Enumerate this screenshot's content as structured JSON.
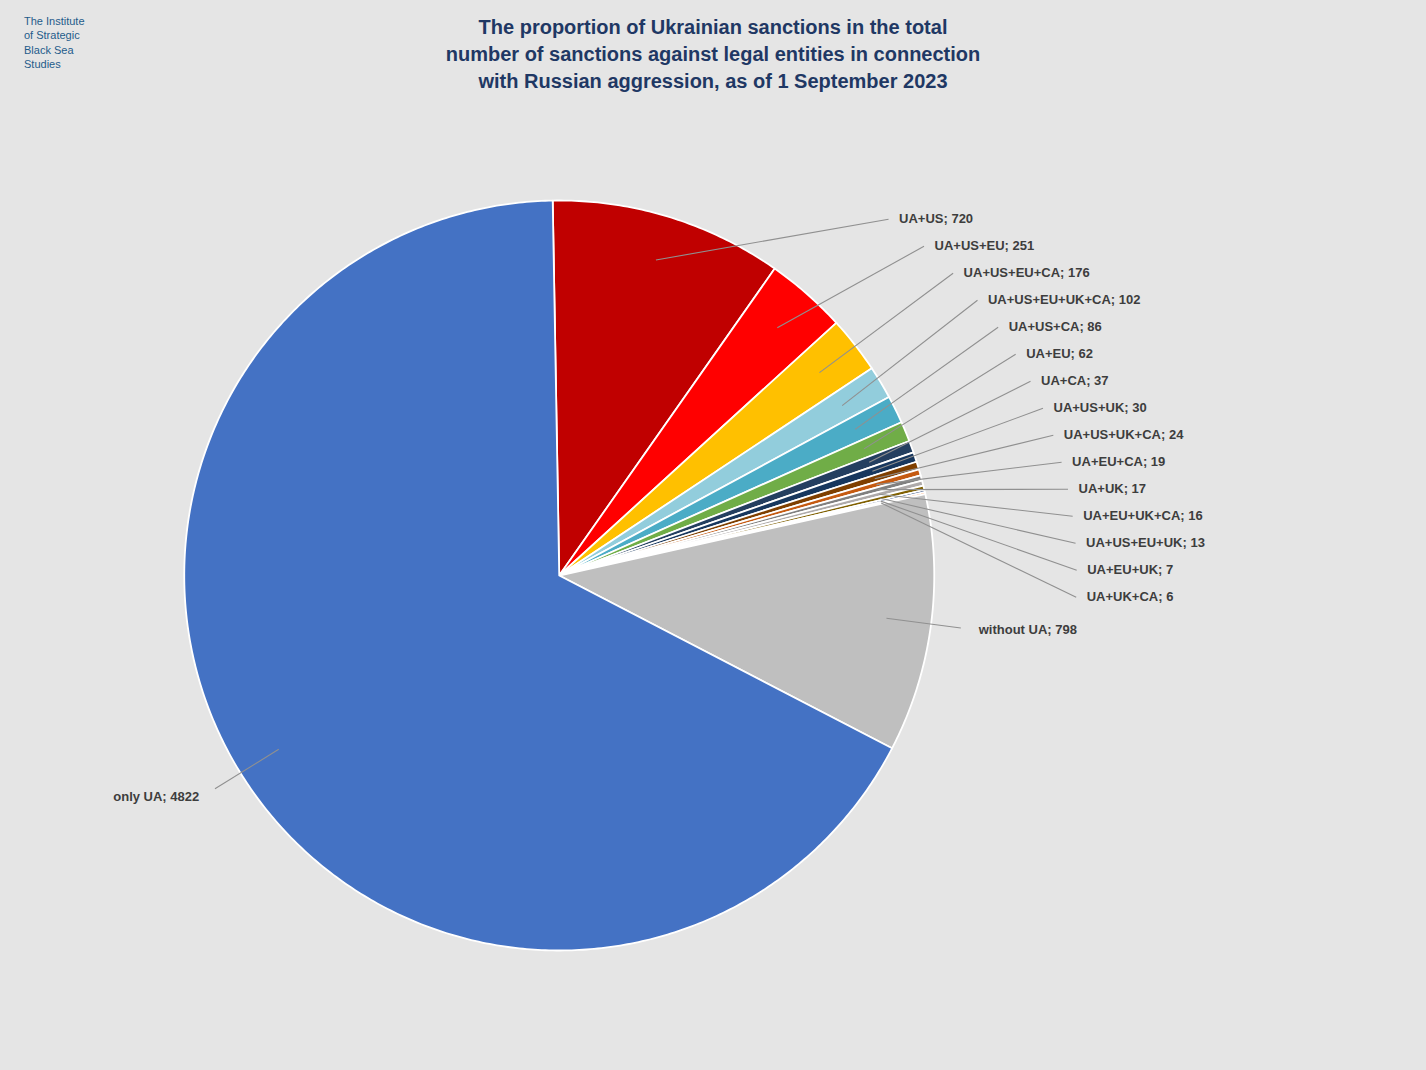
{
  "chart_data": {
    "type": "pie",
    "title": "The proportion of Ukrainian sanctions in the total\nnumber of sanctions against legal entities in connection\nwith Russian aggression, as of 1 September 2023",
    "categories": [
      "UA+US",
      "UA+US+EU",
      "UA+US+EU+CA",
      "UA+US+EU+UK+CA",
      "UA+US+CA",
      "UA+EU",
      "UA+CA",
      "UA+US+UK",
      "UA+US+UK+CA",
      "UA+EU+CA",
      "UA+UK",
      "UA+EU+UK+CA",
      "UA+US+EU+UK",
      "UA+EU+UK",
      "UA+UK+CA",
      "without UA",
      "only UA"
    ],
    "values": [
      720,
      251,
      176,
      102,
      86,
      62,
      37,
      30,
      24,
      19,
      17,
      16,
      13,
      7,
      6,
      798,
      4822
    ],
    "colors": [
      "#C00000",
      "#FF0000",
      "#FFC000",
      "#92CDDC",
      "#4BACC6",
      "#70AD47",
      "#243F60",
      "#17375E",
      "#7F3F00",
      "#C55A11",
      "#808080",
      "#AEAAAA",
      "#806000",
      "#002060",
      "#FF6600",
      "#BFBFBF",
      "#4472C4"
    ],
    "data_labels": true,
    "value_labels": [
      "UA+US; 720",
      "UA+US+EU; 251",
      "UA+US+EU+CA; 176",
      "UA+US+EU+UK+CA; 102",
      "UA+US+CA; 86",
      "UA+EU; 62",
      "UA+CA; 37",
      "UA+US+UK; 30",
      "UA+US+UK+CA; 24",
      "UA+EU+CA; 19",
      "UA+UK; 17",
      "UA+EU+UK+CA; 16",
      "UA+US+EU+UK; 13",
      "UA+EU+UK; 7",
      "UA+UK+CA; 6",
      "without UA; 798",
      "only UA; 4822"
    ],
    "annotations": [
      "The Institute\nof Strategic\nBlack Sea\nStudies"
    ]
  }
}
